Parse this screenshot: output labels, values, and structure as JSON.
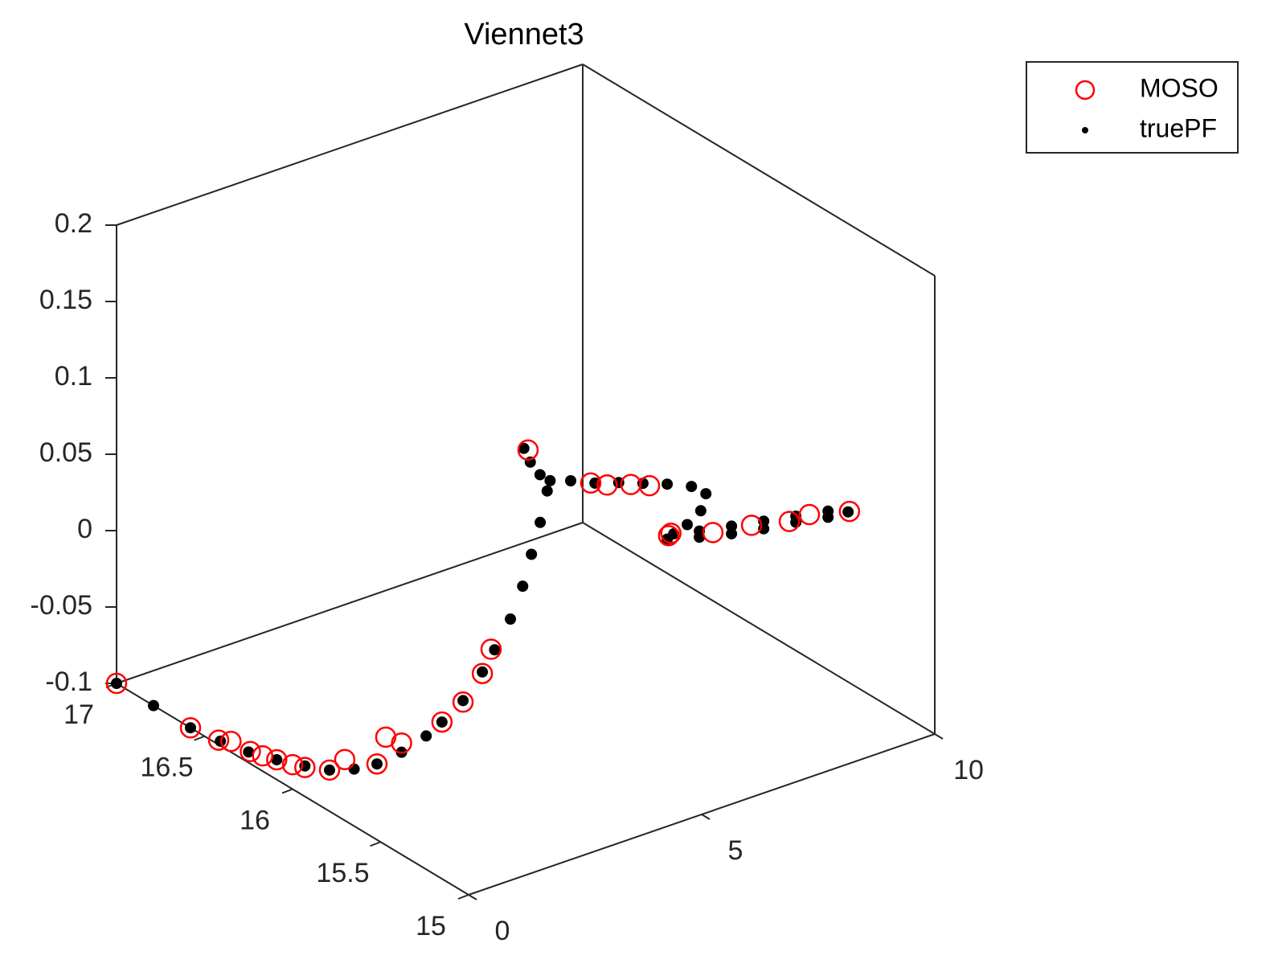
{
  "chart_data": {
    "type": "scatter3d",
    "title": "Viennet3",
    "xlim": [
      0,
      10
    ],
    "ylim": [
      15,
      17
    ],
    "zlim": [
      -0.1,
      0.2
    ],
    "xticks": [
      0,
      5,
      10
    ],
    "yticks": [
      15,
      15.5,
      16,
      16.5,
      17
    ],
    "zticks": [
      -0.1,
      -0.05,
      0,
      0.05,
      0.1,
      0.15,
      0.2
    ],
    "grid": false,
    "legend": "northeastoutside",
    "series": [
      {
        "name": "MOSO",
        "color": "#ff0000",
        "marker": "o",
        "x": [
          0,
          0,
          0,
          0,
          0,
          0,
          0,
          0,
          0,
          0,
          0.1,
          0.3,
          0.3,
          0.45,
          0.75,
          0.9,
          1.05,
          1.2,
          2.03,
          2.62,
          2.97,
          3.48,
          3.88,
          4.29,
          4.34,
          5.24,
          6.07,
          6.88,
          7.31,
          8.17
        ],
        "y": [
          17,
          16.58,
          16.42,
          16.35,
          16.24,
          16.17,
          16.09,
          16,
          15.93,
          15.79,
          15.73,
          15.6,
          15.55,
          15.5,
          15.35,
          15.27,
          15.2,
          15.19,
          15.2,
          15,
          15,
          15,
          15,
          15,
          15,
          15,
          15,
          15,
          15,
          15
        ],
        "z": [
          -0.1,
          -0.1,
          -0.097,
          -0.093,
          -0.092,
          -0.09,
          -0.087,
          -0.084,
          -0.081,
          -0.073,
          -0.063,
          -0.059,
          -0.038,
          -0.04,
          -0.019,
          -0.002,
          0.02,
          0.035,
          0.156,
          0.142,
          0.137,
          0.132,
          0.127,
          0.09,
          0.091,
          0.082,
          0.078,
          0.072,
          0.072,
          0.065
        ]
      },
      {
        "name": "truePF",
        "color": "#000000",
        "marker": ".",
        "x": [
          0,
          0,
          0,
          0,
          0,
          0,
          0,
          0,
          0.15,
          0.3,
          0.45,
          0.6,
          0.75,
          0.9,
          1.05,
          1.2,
          1.35,
          1.5,
          1.65,
          1.8,
          1.95,
          2.05,
          1.94,
          1.89,
          1.91,
          2.19,
          2.71,
          3.22,
          3.74,
          4.26,
          4.78,
          5.09,
          4.98,
          4.69,
          4.4,
          4.26,
          4.95,
          5.64,
          6.33,
          7.02,
          7.71,
          8.14,
          7.71,
          7.02,
          6.33,
          5.64,
          4.95
        ],
        "y": [
          17,
          16.79,
          16.58,
          16.41,
          16.25,
          16.09,
          15.93,
          15.79,
          15.69,
          15.6,
          15.5,
          15.4,
          15.35,
          15.27,
          15.2,
          15.17,
          15.12,
          15.09,
          15.08,
          15.07,
          15.07,
          15.08,
          15.2,
          15.15,
          15.1,
          15,
          15,
          15,
          15,
          15,
          15,
          15,
          15,
          15,
          15,
          15,
          15,
          15,
          15,
          15,
          15,
          15,
          15,
          15,
          15,
          15,
          15
        ],
        "z": [
          -0.1,
          -0.1,
          -0.1,
          -0.097,
          -0.093,
          -0.087,
          -0.08,
          -0.073,
          -0.067,
          -0.059,
          -0.046,
          -0.03,
          -0.019,
          -0.001,
          0.021,
          0.036,
          0.058,
          0.08,
          0.1,
          0.12,
          0.139,
          0.144,
          0.158,
          0.153,
          0.148,
          0.148,
          0.141,
          0.136,
          0.13,
          0.124,
          0.117,
          0.109,
          0.099,
          0.093,
          0.09,
          0.088,
          0.082,
          0.077,
          0.073,
          0.07,
          0.066,
          0.065,
          0.07,
          0.074,
          0.078,
          0.082,
          0.086
        ]
      }
    ]
  }
}
